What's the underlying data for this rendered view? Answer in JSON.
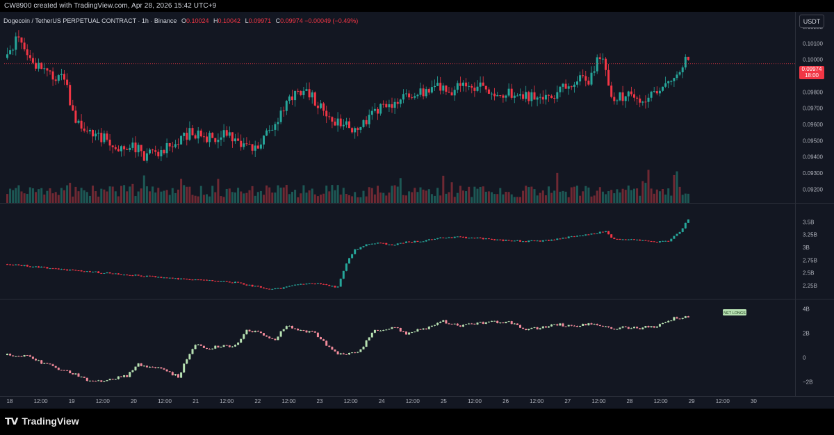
{
  "header": {
    "attribution": "CW8900 created with TradingView.com, Apr 28, 2026 15:42 UTC+9"
  },
  "legend": {
    "symbol": "Dogecoin / TetherUS PERPETUAL CONTRACT · 1h · Binance",
    "o_label": "O",
    "o_value": "0.10024",
    "h_label": "H",
    "h_value": "0.10042",
    "l_label": "L",
    "l_value": "0.09971",
    "c_label": "C",
    "c_value": "0.09974",
    "change": "−0.00049 (−0.49%)"
  },
  "price_scale": {
    "unit": "USDT",
    "last_price": "0.09974",
    "countdown": "18:00"
  },
  "footer": {
    "brand": "TradingView"
  },
  "colors": {
    "up": "#26a69a",
    "down": "#f23645",
    "bg": "#131722",
    "grid_text": "#b2b5be",
    "cvd_up": "#b7e1b2",
    "cvd_down": "#f28b9b"
  },
  "chart_data": [
    {
      "type": "candlestick",
      "pane": "price",
      "title": "Dogecoin / TetherUS PERPETUAL CONTRACT · 1h · Binance",
      "ylim": [
        0.0915,
        0.1026
      ],
      "y_ticks": [
        "0.10200",
        "0.10100",
        "0.10000",
        "0.09900",
        "0.09800",
        "0.09700",
        "0.09600",
        "0.09500",
        "0.09400",
        "0.09300",
        "0.09200"
      ],
      "x_ticks": [
        "18",
        "12:00",
        "19",
        "12:00",
        "20",
        "12:00",
        "21",
        "12:00",
        "22",
        "12:00",
        "23",
        "12:00",
        "24",
        "12:00",
        "25",
        "12:00",
        "26",
        "12:00",
        "27",
        "12:00",
        "28",
        "12:00",
        "29",
        "12:00",
        "30"
      ],
      "close_anchors": [
        [
          0,
          0.1001
        ],
        [
          4,
          0.1014
        ],
        [
          8,
          0.0998
        ],
        [
          12,
          0.0995
        ],
        [
          16,
          0.0989
        ],
        [
          20,
          0.0988
        ],
        [
          24,
          0.096
        ],
        [
          28,
          0.0958
        ],
        [
          32,
          0.0952
        ],
        [
          36,
          0.095
        ],
        [
          40,
          0.0945
        ],
        [
          44,
          0.0948
        ],
        [
          48,
          0.0941
        ],
        [
          52,
          0.0943
        ],
        [
          56,
          0.0946
        ],
        [
          60,
          0.0948
        ],
        [
          64,
          0.0956
        ],
        [
          68,
          0.0953
        ],
        [
          72,
          0.0951
        ],
        [
          76,
          0.0954
        ],
        [
          80,
          0.095
        ],
        [
          84,
          0.0948
        ],
        [
          88,
          0.0945
        ],
        [
          92,
          0.0957
        ],
        [
          96,
          0.0967
        ],
        [
          100,
          0.0978
        ],
        [
          104,
          0.098
        ],
        [
          108,
          0.0975
        ],
        [
          112,
          0.0965
        ],
        [
          116,
          0.0961
        ],
        [
          120,
          0.0958
        ],
        [
          124,
          0.096
        ],
        [
          128,
          0.0966
        ],
        [
          132,
          0.0972
        ],
        [
          136,
          0.0974
        ],
        [
          140,
          0.0978
        ],
        [
          144,
          0.0979
        ],
        [
          148,
          0.0981
        ],
        [
          152,
          0.0983
        ],
        [
          156,
          0.0981
        ],
        [
          160,
          0.0984
        ],
        [
          164,
          0.0983
        ],
        [
          168,
          0.0982
        ],
        [
          172,
          0.098
        ],
        [
          176,
          0.0979
        ],
        [
          180,
          0.0977
        ],
        [
          184,
          0.0978
        ],
        [
          188,
          0.0977
        ],
        [
          192,
          0.0979
        ],
        [
          196,
          0.0984
        ],
        [
          200,
          0.0987
        ],
        [
          204,
          0.0988
        ],
        [
          208,
          0.1002
        ],
        [
          210,
          0.0996
        ],
        [
          212,
          0.0978
        ],
        [
          216,
          0.0977
        ],
        [
          220,
          0.0978
        ],
        [
          222,
          0.0972
        ],
        [
          224,
          0.0975
        ],
        [
          228,
          0.098
        ],
        [
          232,
          0.0988
        ],
        [
          236,
          0.0992
        ],
        [
          238,
          0.1
        ],
        [
          239,
          0.0997
        ]
      ],
      "last_close": 0.09974,
      "volume_panel": {
        "ylim": [
          0,
          1
        ],
        "note": "volume histogram, unlabeled"
      }
    },
    {
      "type": "candlestick",
      "pane": "indicator-1",
      "ylim": [
        2.1,
        3.75
      ],
      "y_ticks": [
        "3.5B",
        "3.25B",
        "3B",
        "2.75B",
        "2.5B",
        "2.25B"
      ],
      "close_anchors": [
        [
          0,
          2.67
        ],
        [
          10,
          2.62
        ],
        [
          20,
          2.56
        ],
        [
          30,
          2.52
        ],
        [
          40,
          2.47
        ],
        [
          50,
          2.43
        ],
        [
          60,
          2.38
        ],
        [
          70,
          2.36
        ],
        [
          80,
          2.31
        ],
        [
          90,
          2.2
        ],
        [
          96,
          2.19
        ],
        [
          100,
          2.25
        ],
        [
          104,
          2.29
        ],
        [
          108,
          2.3
        ],
        [
          112,
          2.25
        ],
        [
          116,
          2.22
        ],
        [
          118,
          2.55
        ],
        [
          120,
          2.8
        ],
        [
          122,
          2.95
        ],
        [
          126,
          3.05
        ],
        [
          130,
          3.08
        ],
        [
          136,
          3.05
        ],
        [
          140,
          3.1
        ],
        [
          146,
          3.13
        ],
        [
          152,
          3.18
        ],
        [
          158,
          3.2
        ],
        [
          164,
          3.19
        ],
        [
          170,
          3.15
        ],
        [
          176,
          3.13
        ],
        [
          182,
          3.12
        ],
        [
          188,
          3.13
        ],
        [
          194,
          3.17
        ],
        [
          200,
          3.23
        ],
        [
          206,
          3.27
        ],
        [
          210,
          3.32
        ],
        [
          212,
          3.18
        ],
        [
          216,
          3.15
        ],
        [
          220,
          3.15
        ],
        [
          224,
          3.12
        ],
        [
          228,
          3.1
        ],
        [
          232,
          3.13
        ],
        [
          236,
          3.3
        ],
        [
          239,
          3.55
        ]
      ]
    },
    {
      "type": "candlestick",
      "pane": "indicator-2",
      "ylim": [
        -2.7,
        4.3
      ],
      "y_ticks": [
        "4B",
        "2B",
        "0",
        "−2B"
      ],
      "annotation": "NET LONGS",
      "close_anchors": [
        [
          0,
          0.2
        ],
        [
          6,
          0.2
        ],
        [
          12,
          -0.4
        ],
        [
          18,
          -0.9
        ],
        [
          24,
          -1.4
        ],
        [
          30,
          -2.0
        ],
        [
          36,
          -1.8
        ],
        [
          42,
          -1.5
        ],
        [
          46,
          -0.6
        ],
        [
          50,
          -0.7
        ],
        [
          56,
          -1.1
        ],
        [
          60,
          -1.6
        ],
        [
          62,
          -0.6
        ],
        [
          66,
          1.0
        ],
        [
          70,
          0.8
        ],
        [
          76,
          0.9
        ],
        [
          80,
          1.0
        ],
        [
          84,
          2.3
        ],
        [
          88,
          2.1
        ],
        [
          94,
          1.5
        ],
        [
          98,
          2.6
        ],
        [
          102,
          2.2
        ],
        [
          108,
          2.0
        ],
        [
          112,
          1.0
        ],
        [
          116,
          0.2
        ],
        [
          120,
          0.3
        ],
        [
          124,
          0.6
        ],
        [
          128,
          2.1
        ],
        [
          132,
          2.3
        ],
        [
          136,
          2.4
        ],
        [
          140,
          2.0
        ],
        [
          146,
          2.3
        ],
        [
          152,
          3.0
        ],
        [
          158,
          2.6
        ],
        [
          164,
          2.8
        ],
        [
          170,
          2.9
        ],
        [
          176,
          2.9
        ],
        [
          182,
          2.3
        ],
        [
          188,
          2.5
        ],
        [
          194,
          2.7
        ],
        [
          200,
          2.6
        ],
        [
          206,
          2.8
        ],
        [
          212,
          2.4
        ],
        [
          216,
          2.5
        ],
        [
          220,
          2.4
        ],
        [
          226,
          2.5
        ],
        [
          230,
          2.8
        ],
        [
          234,
          3.2
        ],
        [
          239,
          3.3
        ]
      ]
    }
  ]
}
